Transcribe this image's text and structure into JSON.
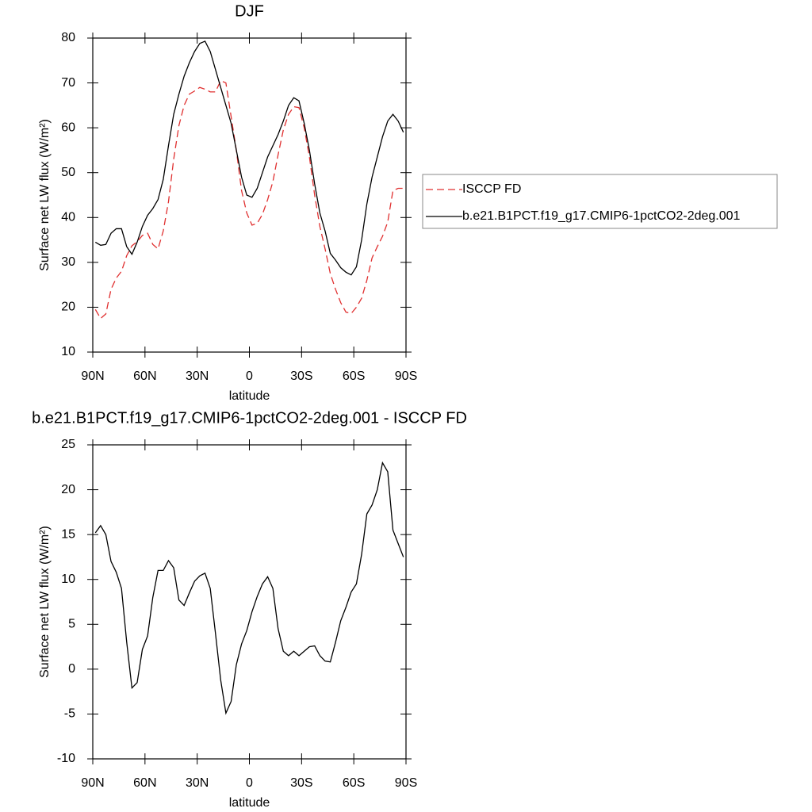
{
  "chart_data": [
    {
      "type": "line",
      "title": "DJF",
      "xlabel": "latitude",
      "ylabel": "Surface net LW flux (W/m²)",
      "x": [
        88.5,
        85.5,
        82.5,
        79.5,
        76.5,
        73.5,
        70.5,
        67.5,
        64.5,
        61.5,
        58.5,
        55.5,
        52.5,
        49.5,
        46.5,
        43.5,
        40.5,
        37.5,
        34.5,
        31.5,
        28.5,
        25.5,
        22.5,
        19.5,
        16.5,
        13.5,
        10.5,
        7.5,
        4.5,
        1.5,
        -1.5,
        -4.5,
        -7.5,
        -10.5,
        -13.5,
        -16.5,
        -19.5,
        -22.5,
        -25.5,
        -28.5,
        -31.5,
        -34.5,
        -37.5,
        -40.5,
        -43.5,
        -46.5,
        -49.5,
        -52.5,
        -55.5,
        -58.5,
        -61.5,
        -64.5,
        -67.5,
        -70.5,
        -73.5,
        -76.5,
        -79.5,
        -82.5,
        -85.5,
        -88.5
      ],
      "series": [
        {
          "name": "ISCCP FD",
          "color": "#e03030",
          "dashed": true,
          "values": [
            19.5,
            17.5,
            18.5,
            24,
            26.5,
            28,
            31.5,
            33.7,
            34.6,
            36,
            36.5,
            34,
            33,
            37,
            43.5,
            53,
            60.5,
            65,
            67.5,
            68.2,
            69,
            68.6,
            68,
            68,
            70.5,
            70,
            62.5,
            55,
            46,
            41,
            38.3,
            38.7,
            40.7,
            44,
            48,
            54,
            59.5,
            63,
            64.7,
            64.5,
            60,
            53.5,
            45,
            38,
            33,
            27.5,
            24,
            21,
            18.9,
            18.6,
            20,
            22,
            26,
            31,
            33.5,
            35.8,
            39,
            46,
            46.5,
            46.5
          ]
        },
        {
          "name": "b.e21.B1PCT.f19_g17.CMIP6-1pctCO2-2deg.001",
          "color": "#000000",
          "dashed": false,
          "values": [
            34.5,
            33.8,
            34,
            36.5,
            37.5,
            37.5,
            33.5,
            31.8,
            34.5,
            38,
            40.5,
            42,
            44,
            48.5,
            56,
            63,
            67.5,
            71.5,
            74.5,
            77,
            78.8,
            79.3,
            77,
            73,
            69,
            65,
            61,
            55,
            49,
            45,
            44.5,
            46.5,
            50,
            53.5,
            56,
            58.5,
            61.5,
            65,
            66.7,
            66,
            61,
            55,
            47.5,
            41,
            37,
            32,
            30.5,
            28.8,
            27.8,
            27.2,
            29,
            35,
            43,
            49,
            53.5,
            58,
            61.5,
            63,
            61.5,
            59
          ]
        }
      ],
      "xlim": [
        90,
        -90
      ],
      "xticks": [
        {
          "value": 90,
          "label": "90N"
        },
        {
          "value": 60,
          "label": "60N"
        },
        {
          "value": 30,
          "label": "30N"
        },
        0,
        {
          "value": -30,
          "label": "30S"
        },
        {
          "value": -60,
          "label": "60S"
        },
        {
          "value": -90,
          "label": "90S"
        }
      ],
      "ylim": [
        10,
        80
      ],
      "yticks": [
        10,
        20,
        30,
        40,
        50,
        60,
        70,
        80
      ],
      "legend": "right"
    },
    {
      "type": "line",
      "title": "b.e21.B1PCT.f19_g17.CMIP6-1pctCO2-2deg.001 - ISCCP FD",
      "xlabel": "latitude",
      "ylabel": "Surface net LW flux (W/m²)",
      "x": [
        88.5,
        85.5,
        82.5,
        79.5,
        76.5,
        73.5,
        70.5,
        67.5,
        64.5,
        61.5,
        58.5,
        55.5,
        52.5,
        49.5,
        46.5,
        43.5,
        40.5,
        37.5,
        34.5,
        31.5,
        28.5,
        25.5,
        22.5,
        19.5,
        16.5,
        13.5,
        10.5,
        7.5,
        4.5,
        1.5,
        -1.5,
        -4.5,
        -7.5,
        -10.5,
        -13.5,
        -16.5,
        -19.5,
        -22.5,
        -25.5,
        -28.5,
        -31.5,
        -34.5,
        -37.5,
        -40.5,
        -43.5,
        -46.5,
        -49.5,
        -52.5,
        -55.5,
        -58.5,
        -61.5,
        -64.5,
        -67.5,
        -70.5,
        -73.5,
        -76.5,
        -79.5,
        -82.5,
        -85.5,
        -88.5
      ],
      "series": [
        {
          "color": "#000000",
          "dashed": false,
          "values": [
            15.2,
            16,
            15,
            12,
            10.8,
            9,
            3,
            -2.1,
            -1.5,
            2.2,
            3.7,
            8,
            11,
            11,
            12.1,
            11.3,
            7.7,
            7.1,
            8.5,
            9.8,
            10.4,
            10.7,
            9,
            4,
            -1.2,
            -4.9,
            -3.6,
            0.5,
            2.8,
            4.3,
            6.4,
            8.1,
            9.5,
            10.3,
            9,
            4.5,
            2,
            1.5,
            2,
            1.5,
            2,
            2.5,
            2.6,
            1.5,
            0.9,
            0.8,
            3,
            5.4,
            6.9,
            8.6,
            9.5,
            12.8,
            17.3,
            18.3,
            20,
            23,
            22,
            15.5,
            14,
            12.5
          ]
        }
      ],
      "xlim": [
        90,
        -90
      ],
      "xticks": [
        {
          "value": 90,
          "label": "90N"
        },
        {
          "value": 60,
          "label": "60N"
        },
        {
          "value": 30,
          "label": "30N"
        },
        0,
        {
          "value": -30,
          "label": "30S"
        },
        {
          "value": -60,
          "label": "60S"
        },
        {
          "value": -90,
          "label": "90S"
        }
      ],
      "ylim": [
        -10,
        25
      ],
      "yticks": [
        -10,
        -5,
        0,
        5,
        10,
        15,
        20,
        25
      ]
    }
  ]
}
